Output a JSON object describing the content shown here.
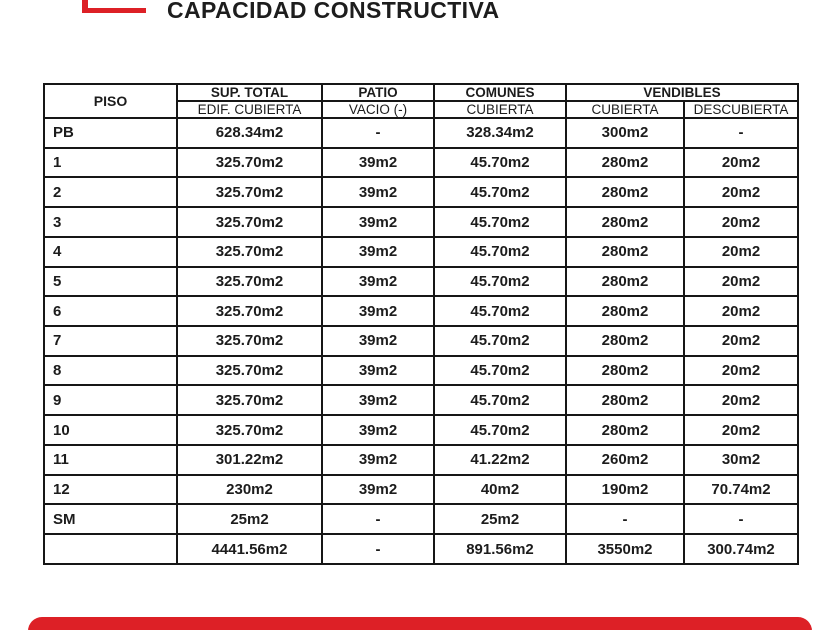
{
  "page": {
    "title": "CAPACIDAD CONSTRUCTIVA"
  },
  "colors": {
    "accent_red": "#dd2026",
    "table_border": "#161616",
    "text": "#1c1c1c"
  },
  "table": {
    "headers": {
      "piso": "PISO",
      "sup_total": "SUP. TOTAL",
      "sup_total_sub": "EDIF. CUBIERTA",
      "patio": "PATIO",
      "patio_sub": "VACIO (-)",
      "comunes": "COMUNES",
      "comunes_sub": "CUBIERTA",
      "vendibles": "VENDIBLES",
      "vendibles_cubierta": "CUBIERTA",
      "vendibles_descubierta": "DESCUBIERTA"
    },
    "rows": [
      [
        "PB",
        "628.34m2",
        "-",
        "328.34m2",
        "300m2",
        "-"
      ],
      [
        "1",
        "325.70m2",
        "39m2",
        "45.70m2",
        "280m2",
        "20m2"
      ],
      [
        "2",
        "325.70m2",
        "39m2",
        "45.70m2",
        "280m2",
        "20m2"
      ],
      [
        "3",
        "325.70m2",
        "39m2",
        "45.70m2",
        "280m2",
        "20m2"
      ],
      [
        "4",
        "325.70m2",
        "39m2",
        "45.70m2",
        "280m2",
        "20m2"
      ],
      [
        "5",
        "325.70m2",
        "39m2",
        "45.70m2",
        "280m2",
        "20m2"
      ],
      [
        "6",
        "325.70m2",
        "39m2",
        "45.70m2",
        "280m2",
        "20m2"
      ],
      [
        "7",
        "325.70m2",
        "39m2",
        "45.70m2",
        "280m2",
        "20m2"
      ],
      [
        "8",
        "325.70m2",
        "39m2",
        "45.70m2",
        "280m2",
        "20m2"
      ],
      [
        "9",
        "325.70m2",
        "39m2",
        "45.70m2",
        "280m2",
        "20m2"
      ],
      [
        "10",
        "325.70m2",
        "39m2",
        "45.70m2",
        "280m2",
        "20m2"
      ],
      [
        "11",
        "301.22m2",
        "39m2",
        "41.22m2",
        "260m2",
        "30m2"
      ],
      [
        "12",
        "230m2",
        "39m2",
        "40m2",
        "190m2",
        "70.74m2"
      ],
      [
        "SM",
        "25m2",
        "-",
        "25m2",
        "-",
        "-"
      ],
      [
        "",
        "4441.56m2",
        "-",
        "891.56m2",
        "3550m2",
        "300.74m2"
      ]
    ]
  }
}
